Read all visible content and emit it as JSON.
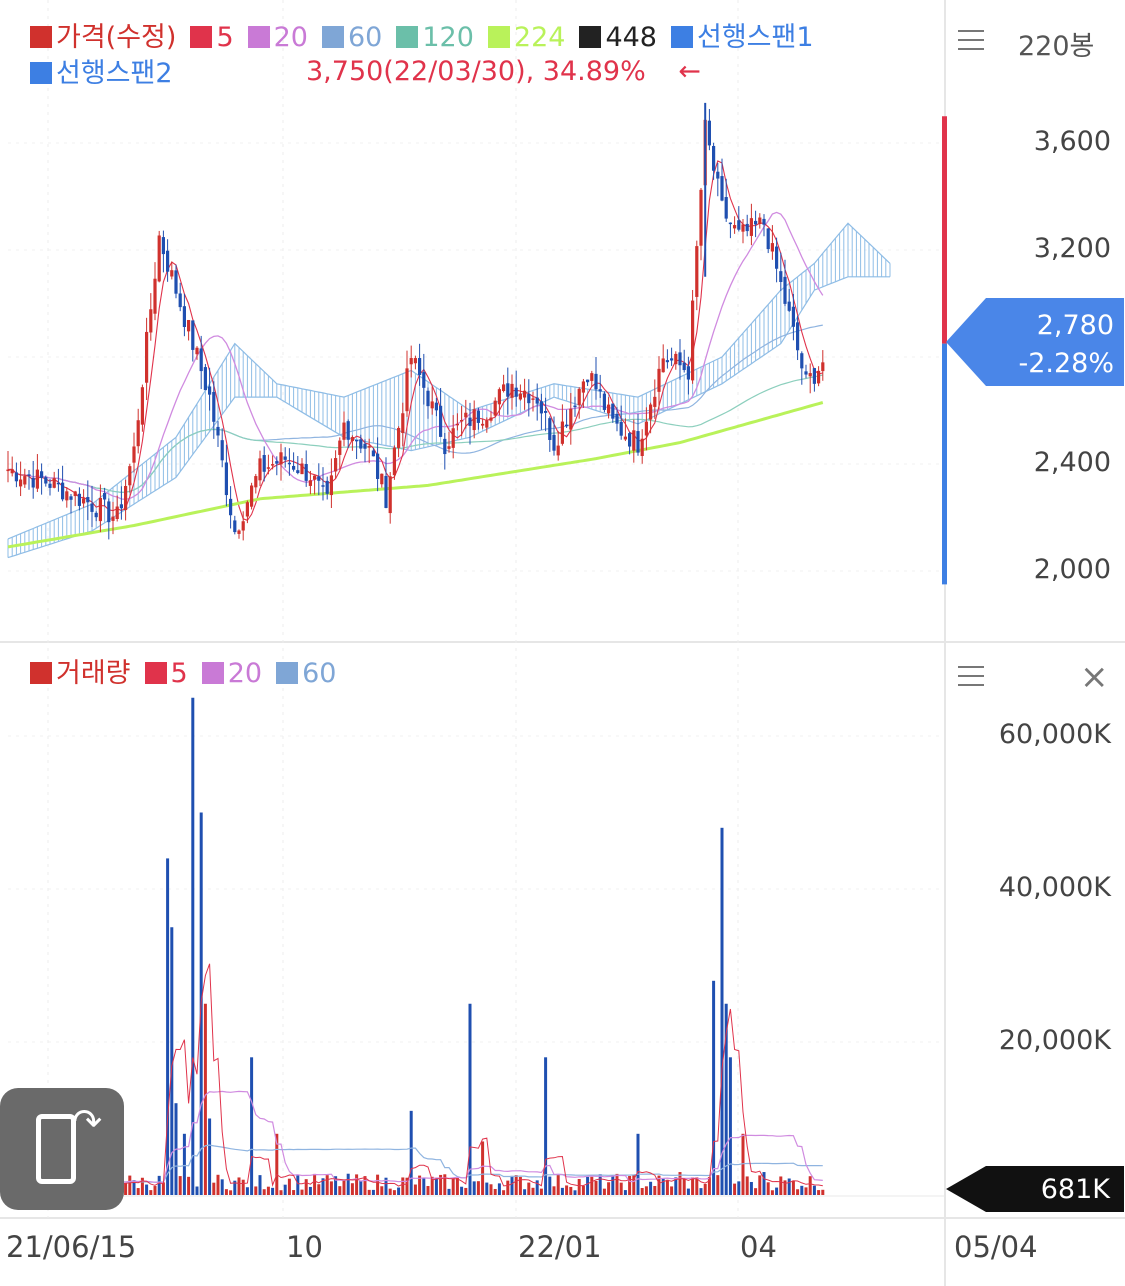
{
  "header": {
    "bars_count": "220봉"
  },
  "price_legend": [
    {
      "label": "가격(수정)",
      "color": "#d0312d"
    },
    {
      "label": "5",
      "color": "#e0334b"
    },
    {
      "label": "20",
      "color": "#c97ad6"
    },
    {
      "label": "60",
      "color": "#7fa6d6"
    },
    {
      "label": "120",
      "color": "#6bbfa9"
    },
    {
      "label": "224",
      "color": "#b9f25a"
    },
    {
      "label": "448",
      "color": "#222222"
    },
    {
      "label": "선행스팬1",
      "color": "#3d7fe3"
    },
    {
      "label": "선행스팬2",
      "color": "#3d7fe3"
    }
  ],
  "volume_legend": [
    {
      "label": "거래량",
      "color": "#d0312d"
    },
    {
      "label": "5",
      "color": "#e0334b"
    },
    {
      "label": "20",
      "color": "#c97ad6"
    },
    {
      "label": "60",
      "color": "#7fa6d6"
    }
  ],
  "high_annotation": "3,750(22/03/30), 34.89%",
  "high_arrow": "←",
  "current_price": {
    "value": "2,780",
    "change": "-2.28%"
  },
  "current_volume": "681K",
  "colors": {
    "up": "#d0312d",
    "down": "#1f4fb0",
    "cloud": "#8fbde6"
  },
  "chart_data": [
    {
      "type": "candlestick",
      "x_ticks": [
        "21/06/15",
        "10",
        "22/01",
        "04",
        "05/04"
      ],
      "y_ticks": [
        "2,000",
        "2,400",
        "3,200",
        "3,600"
      ],
      "ylim": [
        1900,
        3900
      ],
      "grid": true,
      "ma_series": [
        "5",
        "20",
        "60",
        "120",
        "224"
      ],
      "high": {
        "value": 3750,
        "date": "22/03/30",
        "pct": 34.89
      },
      "last": 2780,
      "anchors": [
        [
          0,
          2380
        ],
        [
          10,
          2330
        ],
        [
          20,
          2250
        ],
        [
          26,
          2200
        ],
        [
          30,
          2450
        ],
        [
          36,
          3250
        ],
        [
          40,
          3050
        ],
        [
          44,
          2850
        ],
        [
          48,
          2650
        ],
        [
          54,
          2150
        ],
        [
          60,
          2380
        ],
        [
          66,
          2420
        ],
        [
          72,
          2360
        ],
        [
          76,
          2250
        ],
        [
          80,
          2550
        ],
        [
          86,
          2450
        ],
        [
          90,
          2280
        ],
        [
          96,
          2800
        ],
        [
          100,
          2650
        ],
        [
          104,
          2480
        ],
        [
          108,
          2550
        ],
        [
          114,
          2600
        ],
        [
          120,
          2700
        ],
        [
          126,
          2650
        ],
        [
          130,
          2480
        ],
        [
          138,
          2750
        ],
        [
          144,
          2550
        ],
        [
          150,
          2480
        ],
        [
          156,
          2800
        ],
        [
          162,
          2750
        ],
        [
          166,
          3650
        ],
        [
          170,
          3350
        ],
        [
          174,
          3250
        ],
        [
          180,
          3300
        ],
        [
          186,
          2950
        ],
        [
          190,
          2700
        ],
        [
          194,
          2780
        ]
      ],
      "cloud": [
        [
          0,
          2050,
          2120
        ],
        [
          20,
          2150,
          2250
        ],
        [
          40,
          2350,
          2500
        ],
        [
          54,
          2650,
          2850
        ],
        [
          64,
          2650,
          2700
        ],
        [
          80,
          2500,
          2650
        ],
        [
          96,
          2450,
          2750
        ],
        [
          110,
          2500,
          2600
        ],
        [
          130,
          2650,
          2700
        ],
        [
          150,
          2550,
          2650
        ],
        [
          170,
          2700,
          2800
        ],
        [
          184,
          2850,
          3050
        ],
        [
          192,
          3050,
          3150
        ],
        [
          200,
          3100,
          3300
        ],
        [
          210,
          3100,
          3150
        ]
      ],
      "ma224": [
        [
          0,
          2090
        ],
        [
          30,
          2170
        ],
        [
          60,
          2270
        ],
        [
          100,
          2320
        ],
        [
          140,
          2420
        ],
        [
          160,
          2480
        ],
        [
          194,
          2630
        ]
      ]
    },
    {
      "type": "bar",
      "y_ticks": [
        "20,000K",
        "40,000K",
        "60,000K"
      ],
      "ylim": [
        0,
        67000
      ],
      "unit": "K",
      "ma_series": [
        "5",
        "20",
        "60"
      ],
      "spikes": [
        [
          38,
          44000
        ],
        [
          39,
          35000
        ],
        [
          40,
          12000
        ],
        [
          42,
          8000
        ],
        [
          44,
          65000
        ],
        [
          46,
          50000
        ],
        [
          47,
          25000
        ],
        [
          48,
          10000
        ],
        [
          58,
          18000
        ],
        [
          64,
          8000
        ],
        [
          96,
          11000
        ],
        [
          110,
          25000
        ],
        [
          113,
          7000
        ],
        [
          120,
          2500
        ],
        [
          128,
          18000
        ],
        [
          150,
          8000
        ],
        [
          160,
          3000
        ],
        [
          168,
          28000
        ],
        [
          170,
          48000
        ],
        [
          171,
          25000
        ],
        [
          172,
          18000
        ],
        [
          175,
          8000
        ],
        [
          180,
          3000
        ]
      ],
      "last": 681
    }
  ]
}
